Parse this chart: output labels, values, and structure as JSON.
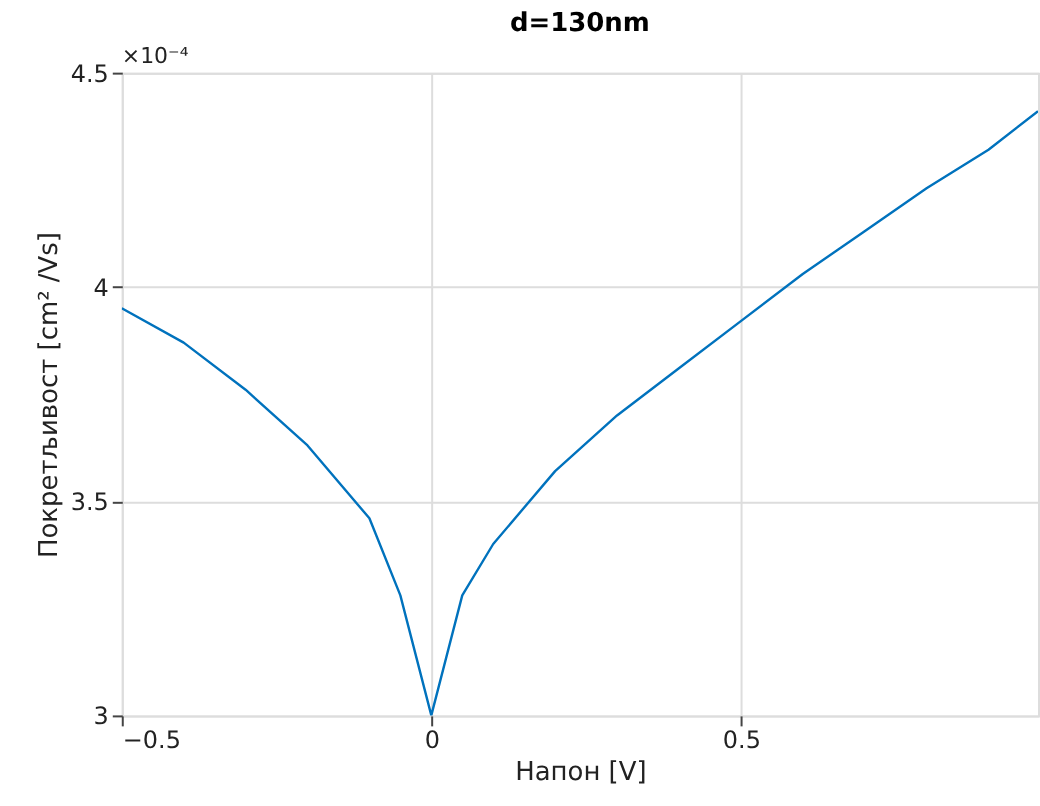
{
  "chart_data": {
    "type": "line",
    "title": "d=130nm",
    "xlabel": "Напон [V]",
    "ylabel": "Покретљивост [cm² /Vs]",
    "annotations": [
      "×10⁻⁴"
    ],
    "x": [
      -0.5,
      -0.4,
      -0.3,
      -0.2,
      -0.1,
      -0.05,
      0,
      0.05,
      0.1,
      0.2,
      0.3,
      0.4,
      0.5,
      0.6,
      0.7,
      0.8,
      0.9,
      0.98
    ],
    "series": [
      {
        "color": "#0072bd",
        "values": [
          3.95,
          3.87,
          3.76,
          3.63,
          3.46,
          3.28,
          3.0,
          3.28,
          3.4,
          3.57,
          3.7,
          3.81,
          3.92,
          4.03,
          4.13,
          4.23,
          4.32,
          4.41
        ]
      }
    ],
    "xlim": [
      -0.5,
      0.98
    ],
    "ylim": [
      3,
      4.5
    ],
    "xticks": [
      -0.5,
      0,
      0.5
    ],
    "yticks": [
      3,
      3.5,
      4,
      4.5
    ],
    "grid": true,
    "marker": "none",
    "line_style": "solid"
  }
}
